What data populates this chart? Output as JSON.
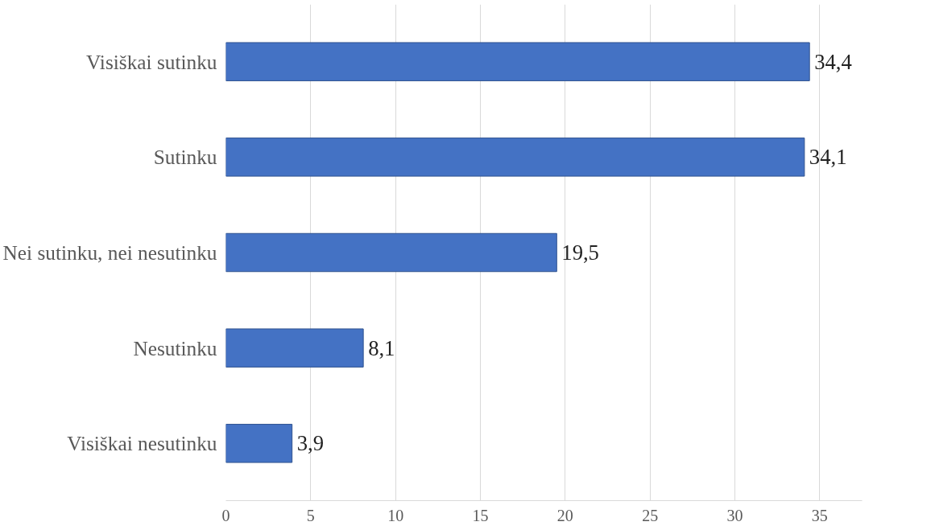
{
  "chart_data": {
    "type": "bar",
    "orientation": "horizontal",
    "categories": [
      "Visiškai sutinku",
      "Sutinku",
      "Nei sutinku, nei nesutinku",
      "Nesutinku",
      "Visiškai nesutinku"
    ],
    "values": [
      34.4,
      34.1,
      19.5,
      8.1,
      3.9
    ],
    "value_labels": [
      "34,4",
      "34,1",
      "19,5",
      "8,1",
      "3,9"
    ],
    "color": "#4472c4",
    "xlim": [
      0,
      37.5
    ],
    "xticks": [
      0,
      5,
      10,
      15,
      20,
      25,
      30,
      35
    ],
    "grid": "x"
  }
}
